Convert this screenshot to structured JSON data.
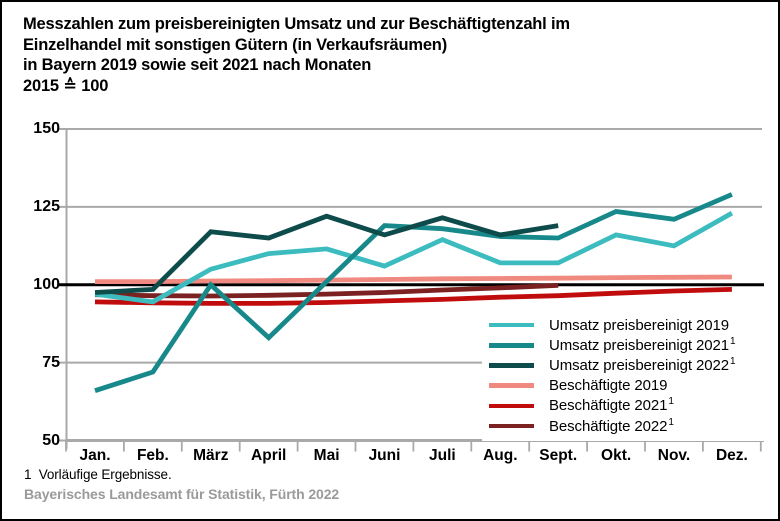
{
  "title": {
    "lines": [
      "Messzahlen zum preisbereinigten Umsatz und zur Beschäftigtenzahl im",
      "Einzelhandel mit sonstigen Gütern (in Verkaufsräumen)",
      "in Bayern 2019 sowie seit 2021 nach Monaten",
      "2015 ≙ 100"
    ]
  },
  "footnote": "1  Vorläufige Ergebnisse.",
  "source": "Bayerisches Landesamt für Statistik, Fürth 2022",
  "chart_data": {
    "type": "line",
    "title": "Messzahlen zum preisbereinigten Umsatz und zur Beschäftigtenzahl im Einzelhandel mit sonstigen Gütern (in Verkaufsräumen) in Bayern 2019 sowie seit 2021 nach Monaten, 2015 ≙ 100",
    "categories": [
      "Jan.",
      "Feb.",
      "März",
      "April",
      "Mai",
      "Juni",
      "Juli",
      "Aug.",
      "Sept.",
      "Okt.",
      "Nov.",
      "Dez."
    ],
    "ylim": [
      50,
      150
    ],
    "yticks": [
      50,
      75,
      100,
      125,
      150
    ],
    "reference_line": 100,
    "grid_on": true,
    "legend_position": "inside-right-bottom",
    "grid_color": "#a9a9a9",
    "reference_color": "#000000",
    "series": [
      {
        "name": "umsatz-2019",
        "label": "Umsatz preisbereinigt 2019",
        "sup": "",
        "color": "#3dbcc0",
        "values": [
          97,
          94.5,
          105,
          110,
          111.5,
          106,
          114.5,
          107,
          107,
          116,
          112.5,
          123
        ]
      },
      {
        "name": "umsatz-2021",
        "label": "Umsatz preisbereinigt 2021",
        "sup": "1",
        "color": "#17898b",
        "values": [
          66,
          72,
          100,
          83,
          101,
          119,
          118,
          115.5,
          115,
          123.5,
          121,
          129
        ]
      },
      {
        "name": "umsatz-2022",
        "label": "Umsatz preisbereinigt 2022",
        "sup": "1",
        "color": "#0e4b4b",
        "values": [
          97.5,
          98.5,
          117,
          115,
          122,
          116,
          121.5,
          116,
          119,
          null,
          null,
          null
        ]
      },
      {
        "name": "beschaeftigte-2019",
        "label": "Beschäftigte 2019",
        "sup": "",
        "color": "#f0897f",
        "values": [
          101,
          101,
          101.2,
          101.3,
          101.5,
          101.7,
          101.9,
          102,
          102.1,
          102.3,
          102.4,
          102.5
        ]
      },
      {
        "name": "beschaeftigte-2021",
        "label": "Beschäftigte 2021",
        "sup": "1",
        "color": "#c00c0c",
        "values": [
          94.5,
          94.2,
          94,
          94,
          94.3,
          94.8,
          95.3,
          96,
          96.5,
          97.3,
          98,
          98.5
        ]
      },
      {
        "name": "beschaeftigte-2022",
        "label": "Beschäftigte 2022",
        "sup": "1",
        "color": "#7b2121",
        "values": [
          96.8,
          96.5,
          96.4,
          96.6,
          97,
          97.5,
          98.3,
          99,
          99.8,
          null,
          null,
          null
        ]
      }
    ]
  }
}
